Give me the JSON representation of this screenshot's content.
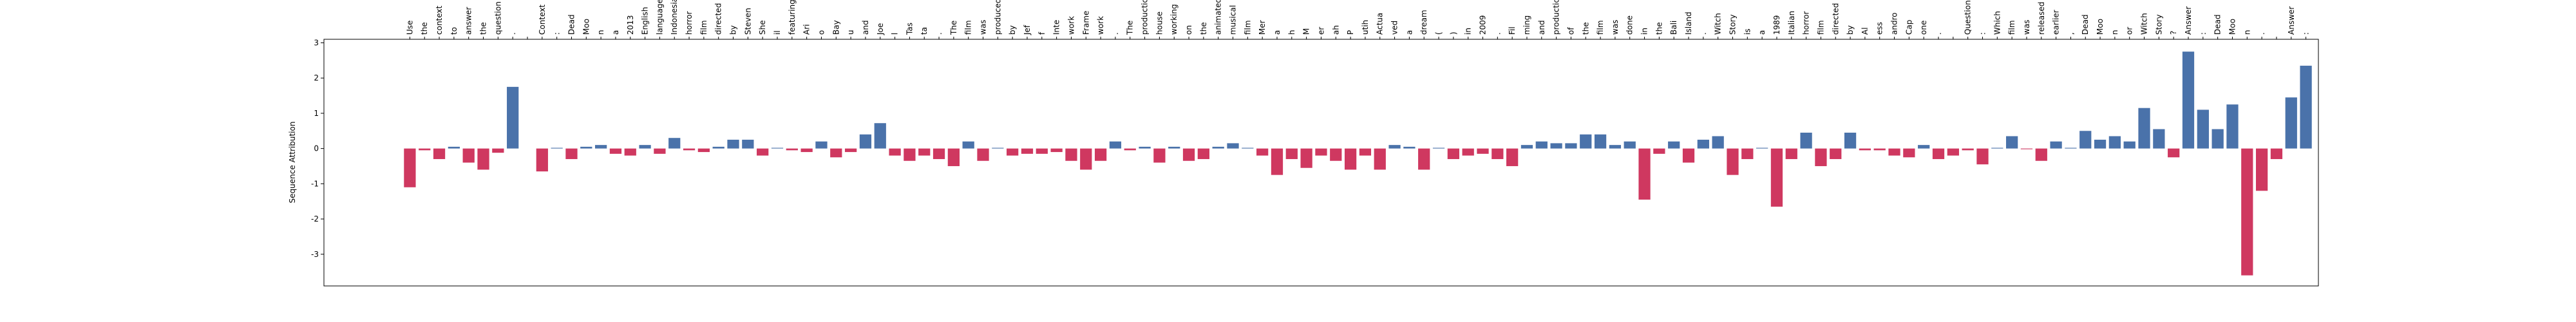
{
  "chart_data": {
    "type": "bar",
    "ylabel": "Sequence Attribution",
    "categories": [
      "Use",
      "the",
      "context",
      "to",
      "answer",
      "the",
      "question",
      ".",
      null,
      "Context",
      ":",
      "Dead",
      "Moo",
      "n",
      "a",
      "2013",
      "English",
      "language",
      "Indonesian",
      "horror",
      "film",
      "directed",
      "by",
      "Steven",
      "She",
      "il",
      "featuring",
      "Ari",
      "o",
      "Bay",
      "u",
      "and",
      "Joe",
      "l",
      "Tas",
      "ta",
      ".",
      "The",
      "film",
      "was",
      "produced",
      "by",
      "Jef",
      "f",
      "Inte",
      "work",
      "Frame",
      "work",
      ".",
      "The",
      "production",
      "house",
      "working",
      "on",
      "the",
      "animated",
      "musical",
      "film",
      "Mer",
      "a",
      "h",
      "M",
      "er",
      "ah",
      "P",
      "utih",
      "Actua",
      "ved",
      "a",
      "dream",
      "(",
      ")",
      "in",
      "2009",
      ".",
      "Fil",
      "ming",
      "and",
      "production",
      "of",
      "the",
      "film",
      "was",
      "done",
      "in",
      "the",
      "Bali",
      "Island",
      ".",
      "Witch",
      "Story",
      "is",
      "a",
      "1989",
      "Italian",
      "horror",
      "film",
      "directed",
      "by",
      "Al",
      "ess",
      "andro",
      "Cap",
      "one",
      ".",
      null,
      "Question",
      ":",
      "Which",
      "film",
      "was",
      "released",
      "earlier",
      ",",
      "Dead",
      "Moo",
      "n",
      "or",
      "Witch",
      "Story",
      "?",
      "Answer",
      ":",
      "Dead",
      "Moo",
      "n",
      ".",
      null,
      "Answer",
      ":"
    ],
    "values": [
      -1.1,
      -0.05,
      -0.3,
      0.05,
      -0.4,
      -0.6,
      -0.12,
      1.75,
      0,
      -0.65,
      0.02,
      -0.3,
      0.05,
      0.1,
      -0.15,
      -0.2,
      0.1,
      -0.15,
      0.3,
      -0.05,
      -0.1,
      0.05,
      0.25,
      0.25,
      -0.2,
      0.02,
      -0.05,
      -0.1,
      0.2,
      -0.25,
      -0.1,
      0.4,
      0.72,
      -0.2,
      -0.35,
      -0.2,
      -0.3,
      -0.5,
      0.2,
      -0.35,
      0.02,
      -0.2,
      -0.15,
      -0.15,
      -0.1,
      -0.35,
      -0.6,
      -0.35,
      0.2,
      -0.05,
      0.05,
      -0.4,
      0.05,
      -0.35,
      -0.3,
      0.05,
      0.15,
      0.02,
      -0.2,
      -0.75,
      -0.3,
      -0.55,
      -0.2,
      -0.35,
      -0.6,
      -0.2,
      -0.6,
      0.1,
      0.05,
      -0.6,
      0.02,
      -0.3,
      -0.2,
      -0.15,
      -0.3,
      -0.5,
      0.1,
      0.2,
      0.15,
      0.15,
      0.4,
      0.4,
      0.1,
      0.2,
      -1.45,
      -0.15,
      0.2,
      -0.4,
      0.25,
      0.35,
      -0.75,
      -0.3,
      0.02,
      -1.65,
      -0.3,
      0.45,
      -0.5,
      -0.3,
      0.45,
      -0.05,
      -0.05,
      -0.2,
      -0.25,
      0.1,
      -0.3,
      -0.2,
      -0.05,
      -0.45,
      0.02,
      0.35,
      -0.02,
      -0.35,
      0.2,
      0.02,
      0.5,
      0.25,
      0.35,
      0.2,
      1.15,
      0.55,
      -0.25,
      2.75,
      1.1,
      0.55,
      1.25,
      -3.6,
      -1.2,
      -0.3,
      1.45,
      2.35
    ],
    "positive_color": "#4a72aa",
    "negative_color": "#cf3860",
    "ylim": [
      -3.9,
      3.1
    ],
    "yticks": [
      -3,
      -2,
      -1,
      0,
      1,
      2,
      3
    ],
    "grid": false
  }
}
